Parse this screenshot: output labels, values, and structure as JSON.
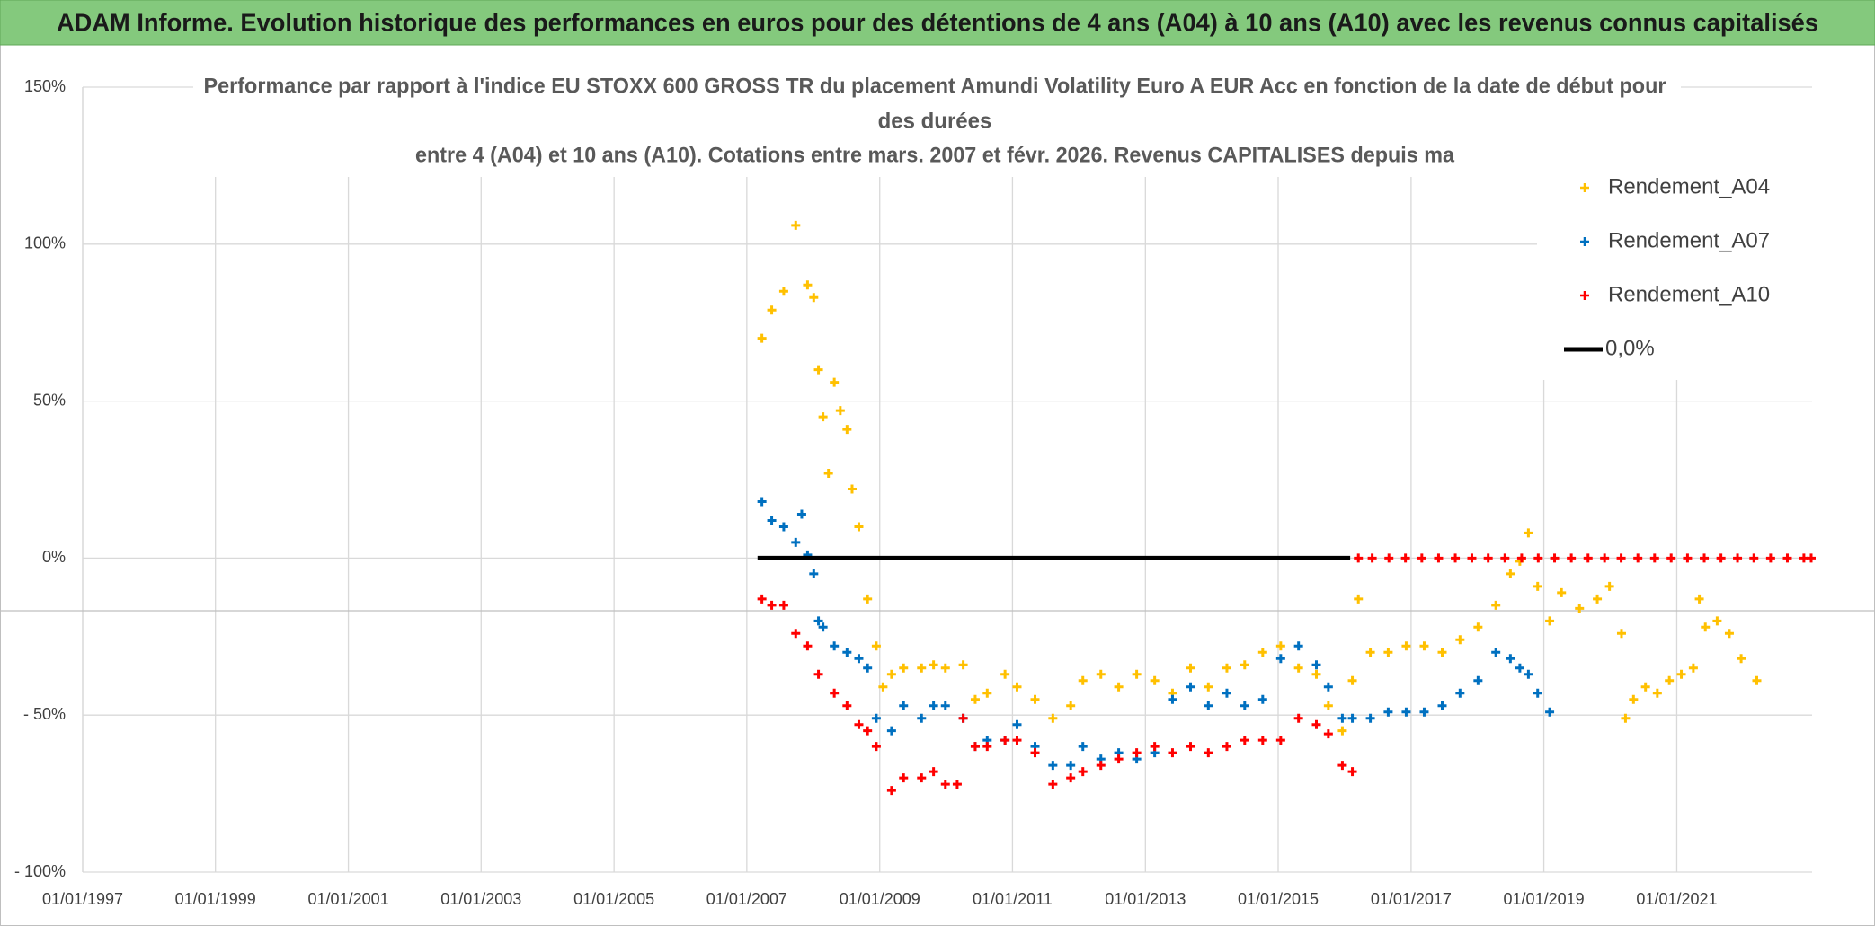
{
  "header": {
    "title": "ADAM Informe. Evolution historique des performances en euros pour des détentions de 4 ans (A04) à 10 ans (A10) avec les revenus connus capitalisés"
  },
  "chart_data": {
    "type": "scatter",
    "title": [
      "Performance par rapport à l'indice EU STOXX 600 GROSS TR  du placement Amundi Volatility Euro A EUR Acc en fonction de la date de début pour",
      "des durées",
      "entre 4 (A04) et 10 ans (A10). Cotations entre mars. 2007 et févr. 2026. Revenus CAPITALISES depuis ma"
    ],
    "xlim": [
      "1997-01-01",
      "2023-01-15"
    ],
    "xticks": [
      {
        "value": "1997-01-01",
        "label": "01/01/1997"
      },
      {
        "value": "1999-01-01",
        "label": "01/01/1999"
      },
      {
        "value": "2001-01-01",
        "label": "01/01/2001"
      },
      {
        "value": "2003-01-01",
        "label": "01/01/2003"
      },
      {
        "value": "2005-01-01",
        "label": "01/01/2005"
      },
      {
        "value": "2007-01-01",
        "label": "01/01/2007"
      },
      {
        "value": "2009-01-01",
        "label": "01/01/2009"
      },
      {
        "value": "2011-01-01",
        "label": "01/01/2011"
      },
      {
        "value": "2013-01-01",
        "label": "01/01/2013"
      },
      {
        "value": "2015-01-01",
        "label": "01/01/2015"
      },
      {
        "value": "2017-01-01",
        "label": "01/01/2017"
      },
      {
        "value": "2019-01-01",
        "label": "01/01/2019"
      },
      {
        "value": "2021-01-01",
        "label": "01/01/2021"
      }
    ],
    "ylim": [
      -100,
      150
    ],
    "yticks": [
      {
        "value": -100,
        "label": "- 100%"
      },
      {
        "value": -50,
        "label": "- 50%"
      },
      {
        "value": 0,
        "label": "0%"
      },
      {
        "value": 50,
        "label": "50%"
      },
      {
        "value": 100,
        "label": "100%"
      },
      {
        "value": 150,
        "label": "150%"
      }
    ],
    "grid": true,
    "legend": "right",
    "series": [
      {
        "name": "Rendement_A04",
        "color": "#ffc000",
        "marker": "cross",
        "x": [
          "2007-03-25",
          "2007-05-18",
          "2007-07-23",
          "2007-09-27",
          "2007-12-01",
          "2008-01-04",
          "2008-01-30",
          "2008-02-24",
          "2008-03-25",
          "2008-04-26",
          "2008-05-29",
          "2008-07-05",
          "2008-08-02",
          "2008-09-08",
          "2008-10-26",
          "2008-12-13",
          "2009-01-19",
          "2009-03-07",
          "2009-05-12",
          "2009-08-19",
          "2009-10-24",
          "2009-12-28",
          "2010-04-05",
          "2010-06-10",
          "2010-08-15",
          "2010-11-21",
          "2011-01-26",
          "2011-05-05",
          "2011-08-11",
          "2011-11-17",
          "2012-01-23",
          "2012-05-01",
          "2012-08-07",
          "2012-11-14",
          "2013-02-21",
          "2013-05-30",
          "2013-09-06",
          "2013-12-13",
          "2014-03-25",
          "2014-07-01",
          "2014-10-08",
          "2015-01-15",
          "2015-04-23",
          "2015-07-30",
          "2015-10-04",
          "2015-12-20",
          "2016-02-13",
          "2016-03-17",
          "2016-05-22",
          "2016-08-28",
          "2016-12-05",
          "2017-03-14",
          "2017-06-21",
          "2017-09-27",
          "2018-01-04",
          "2018-04-12",
          "2018-07-01",
          "2018-08-22",
          "2018-10-08",
          "2018-11-28",
          "2019-02-02",
          "2019-04-08",
          "2019-07-16",
          "2019-10-22",
          "2019-12-28",
          "2020-03-03",
          "2020-03-25",
          "2020-05-08",
          "2020-07-13",
          "2020-09-16",
          "2020-11-21",
          "2021-01-26",
          "2021-04-02",
          "2021-05-05",
          "2021-06-07",
          "2021-08-11",
          "2021-10-17",
          "2021-12-21",
          "2022-03-17"
        ],
        "values": [
          70,
          79,
          85,
          106,
          87,
          83,
          60,
          45,
          27,
          56,
          47,
          41,
          22,
          10,
          -13,
          -28,
          -41,
          -37,
          -35,
          -35,
          -34,
          -35,
          -34,
          -45,
          -43,
          -37,
          -41,
          -45,
          -51,
          -47,
          -39,
          -37,
          -41,
          -37,
          -39,
          -43,
          -35,
          -41,
          -35,
          -34,
          -30,
          -28,
          -35,
          -37,
          -47,
          -55,
          -39,
          -13,
          -30,
          -30,
          -28,
          -28,
          -30,
          -26,
          -22,
          -15,
          -5,
          -1,
          8,
          -9,
          -20,
          -11,
          -16,
          -13,
          -9,
          -24,
          -51,
          -45,
          -41,
          -43,
          -39,
          -37,
          -35,
          -13,
          -22,
          -20,
          -24,
          -32,
          -39
        ]
      },
      {
        "name": "Rendement_A07",
        "color": "#0070c0",
        "marker": "cross",
        "x": [
          "2007-03-25",
          "2007-05-18",
          "2007-07-23",
          "2007-09-27",
          "2007-10-30",
          "2007-12-01",
          "2008-01-04",
          "2008-01-30",
          "2008-02-24",
          "2008-04-26",
          "2008-07-05",
          "2008-09-08",
          "2008-10-26",
          "2008-12-13",
          "2009-03-07",
          "2009-05-12",
          "2009-08-19",
          "2009-10-24",
          "2009-12-28",
          "2010-04-05",
          "2010-06-10",
          "2010-08-15",
          "2010-11-21",
          "2011-01-26",
          "2011-05-05",
          "2011-08-11",
          "2011-11-17",
          "2012-01-23",
          "2012-05-01",
          "2012-08-07",
          "2012-11-14",
          "2013-02-21",
          "2013-05-30",
          "2013-09-06",
          "2013-12-13",
          "2014-03-25",
          "2014-07-01",
          "2014-10-08",
          "2015-01-15",
          "2015-04-23",
          "2015-07-30",
          "2015-10-04",
          "2015-12-20",
          "2016-02-13",
          "2016-05-22",
          "2016-08-28",
          "2016-12-05",
          "2017-03-14",
          "2017-06-21",
          "2017-09-27",
          "2018-01-04",
          "2018-04-12",
          "2018-07-01",
          "2018-08-22",
          "2018-10-08",
          "2018-11-28",
          "2019-02-02"
        ],
        "values": [
          18,
          12,
          10,
          5,
          14,
          1,
          -5,
          -20,
          -22,
          -28,
          -30,
          -32,
          -35,
          -51,
          -55,
          -47,
          -51,
          -47,
          -47,
          -51,
          -60,
          -58,
          -58,
          -53,
          -60,
          -66,
          -66,
          -60,
          -64,
          -62,
          -64,
          -62,
          -45,
          -41,
          -47,
          -43,
          -47,
          -45,
          -32,
          -28,
          -34,
          -41,
          -51,
          -51,
          -51,
          -49,
          -49,
          -49,
          -47,
          -43,
          -39,
          -30,
          -32,
          -35,
          -37,
          -43,
          -49
        ]
      },
      {
        "name": "Rendement_A10",
        "color": "#ff0000",
        "marker": "cross",
        "x": [
          "2007-03-25",
          "2007-05-18",
          "2007-07-23",
          "2007-09-27",
          "2007-12-01",
          "2008-01-30",
          "2008-04-26",
          "2008-07-05",
          "2008-09-08",
          "2008-10-26",
          "2008-12-13",
          "2009-03-07",
          "2009-05-12",
          "2009-08-19",
          "2009-10-24",
          "2009-12-28",
          "2010-03-03",
          "2010-04-05",
          "2010-06-10",
          "2010-08-15",
          "2010-11-21",
          "2011-01-26",
          "2011-05-05",
          "2011-08-11",
          "2011-11-17",
          "2012-01-23",
          "2012-05-01",
          "2012-08-07",
          "2012-11-14",
          "2013-02-21",
          "2013-05-30",
          "2013-09-06",
          "2013-12-13",
          "2014-03-25",
          "2014-07-01",
          "2014-10-08",
          "2015-01-15",
          "2015-04-23",
          "2015-07-30",
          "2015-10-04",
          "2015-12-20",
          "2016-02-13",
          "2016-03-17",
          "2016-06-01",
          "2016-09-01",
          "2016-12-01",
          "2017-03-01",
          "2017-06-01",
          "2017-09-01",
          "2017-12-01",
          "2018-03-01",
          "2018-06-01",
          "2018-09-01",
          "2018-12-01",
          "2019-03-01",
          "2019-06-01",
          "2019-09-01",
          "2019-12-01",
          "2020-03-01",
          "2020-06-01",
          "2020-09-01",
          "2020-12-01",
          "2021-03-01",
          "2021-06-01",
          "2021-09-01",
          "2021-12-01",
          "2022-03-01",
          "2022-06-01",
          "2022-09-01",
          "2022-12-01",
          "2023-01-10"
        ],
        "values": [
          -13,
          -15,
          -15,
          -24,
          -28,
          -37,
          -43,
          -47,
          -53,
          -55,
          -60,
          -74,
          -70,
          -70,
          -68,
          -72,
          -72,
          -51,
          -60,
          -60,
          -58,
          -58,
          -62,
          -72,
          -70,
          -68,
          -66,
          -64,
          -62,
          -60,
          -62,
          -60,
          -62,
          -60,
          -58,
          -58,
          -58,
          -51,
          -53,
          -56,
          -66,
          -68,
          0,
          0,
          0,
          0,
          0,
          0,
          0,
          0,
          0,
          0,
          0,
          0,
          0,
          0,
          0,
          0,
          0,
          0,
          0,
          0,
          0,
          0,
          0,
          0,
          0,
          0,
          0,
          0,
          0
        ]
      },
      {
        "name": "0,0%",
        "color": "#000000",
        "marker": "line",
        "x": [
          "2007-03-01",
          "2016-02-01"
        ],
        "values": [
          0,
          0
        ]
      }
    ]
  }
}
